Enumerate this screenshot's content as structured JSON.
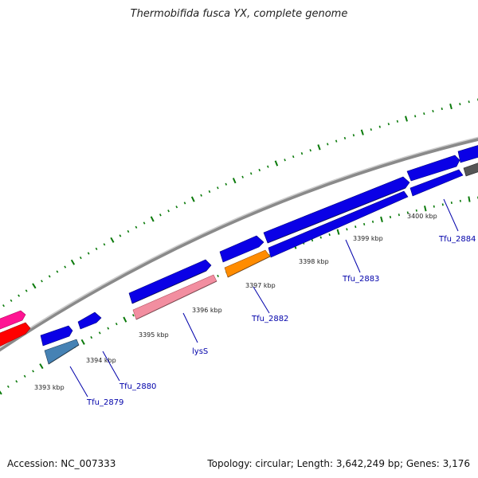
{
  "header": {
    "title": "Thermobifida fusca YX, complete genome"
  },
  "footer": {
    "accession": "Accession: NC_007333",
    "summary": "Topology: circular; Length: 3,642,249 bp; Genes: 3,176"
  },
  "scale_labels": [
    "3393 kbp",
    "3394 kbp",
    "3395 kbp",
    "3396 kbp",
    "3397 kbp",
    "3398 kbp",
    "3399 kbp",
    "3400 kbp"
  ],
  "gene_labels": [
    "Tfu_2879",
    "Tfu_2880",
    "lysS",
    "Tfu_2882",
    "Tfu_2883",
    "Tfu_2884"
  ],
  "colors": {
    "backbone": "#8a8a8a",
    "cds": "#0a00e6",
    "pink": "#f28ea0",
    "orange": "#ff8c00",
    "steelblue": "#4682b4",
    "magenta": "#ff1493",
    "red": "#ff0000",
    "gray": "#555555",
    "tick": "#0a7a0a",
    "label": "#0000aa"
  }
}
